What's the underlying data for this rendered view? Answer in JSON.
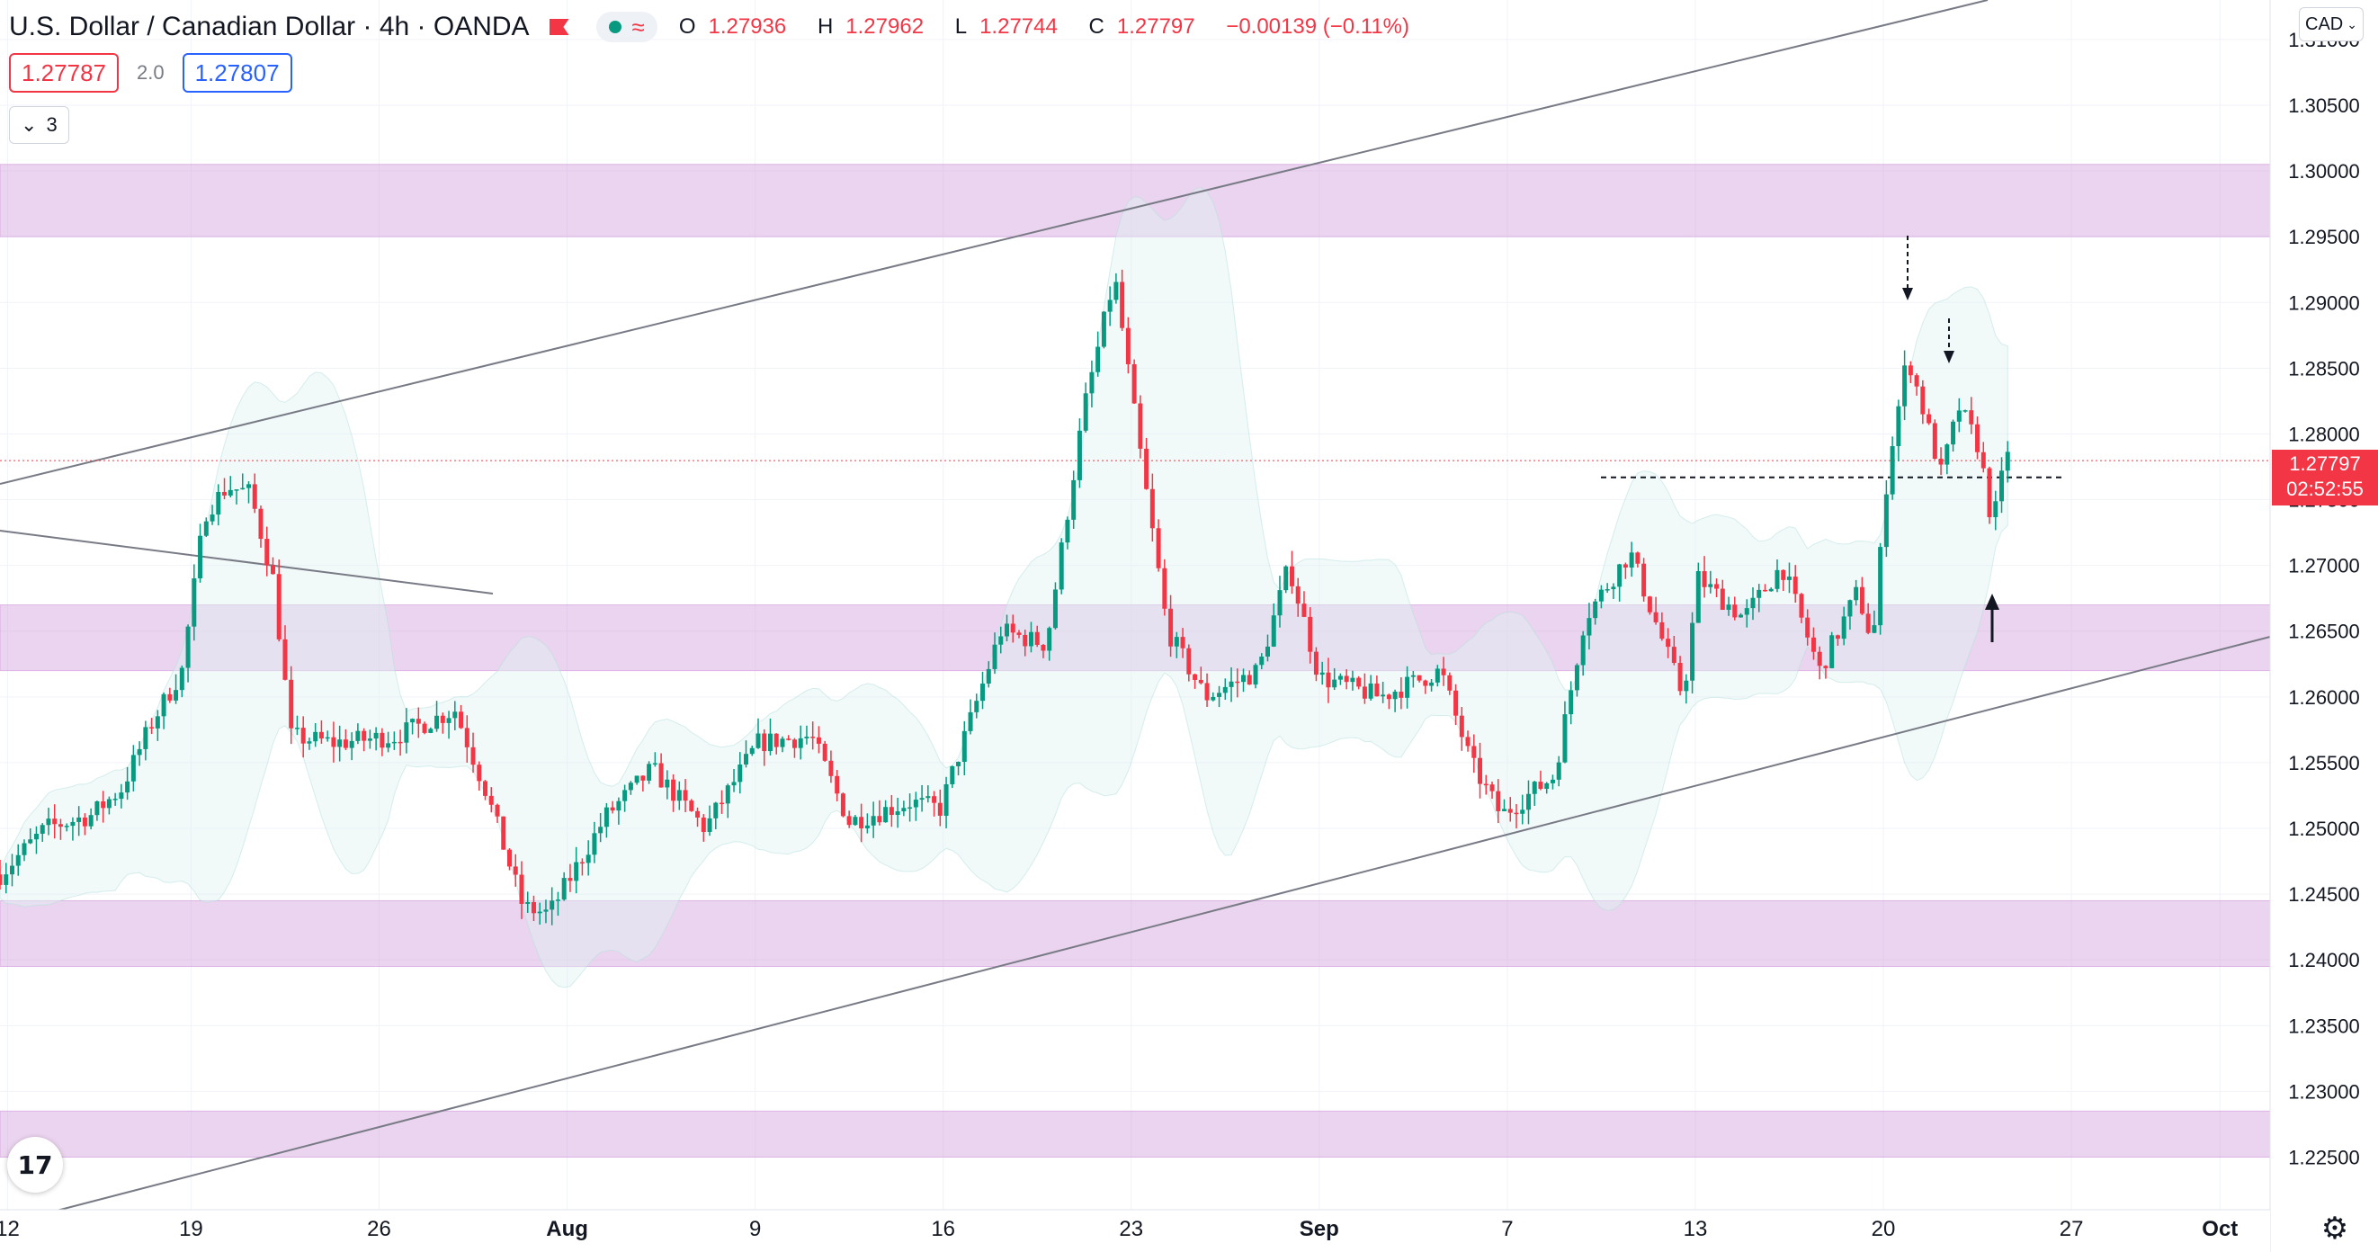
{
  "header": {
    "title": "U.S. Dollar / Canadian Dollar · 4h · OANDA",
    "ohlc": {
      "o": "1.27936",
      "h": "1.27962",
      "l": "1.27744",
      "c": "1.27797",
      "change": "−0.00139 (−0.11%)"
    }
  },
  "trade": {
    "sell": "1.27787",
    "spread": "2.0",
    "buy": "1.27807"
  },
  "indicators": {
    "count": "3"
  },
  "axis": {
    "currency": "CAD",
    "y_labels": [
      "1.31000",
      "1.30500",
      "1.30000",
      "1.29500",
      "1.29000",
      "1.28500",
      "1.28000",
      "1.27500",
      "1.27000",
      "1.26500",
      "1.26000",
      "1.25500",
      "1.25000",
      "1.24500",
      "1.24000",
      "1.23500",
      "1.23000",
      "1.22500"
    ],
    "x_labels": [
      "12",
      "19",
      "26",
      "Aug",
      "9",
      "16",
      "23",
      "Sep",
      "7",
      "13",
      "20",
      "27",
      "Oct"
    ]
  },
  "last_price": {
    "value": "1.27797",
    "countdown": "02:52:55"
  },
  "colors": {
    "up": "#089981",
    "down": "#f23645",
    "zone": "#ce93d8",
    "band": "#e0f2f1"
  },
  "zones": [
    {
      "from": 1.295,
      "to": 1.3005
    },
    {
      "from": 1.262,
      "to": 1.267
    },
    {
      "from": 1.2395,
      "to": 1.2445
    },
    {
      "from": 1.225,
      "to": 1.2285
    }
  ],
  "key_levels": [
    {
      "price": 1.2767,
      "style": "dashed"
    }
  ],
  "chart_data": {
    "type": "candlestick",
    "symbol": "USDCAD",
    "timeframe": "4h",
    "ylim": [
      1.221,
      1.313
    ],
    "price_path": [
      {
        "x": 0,
        "p": 1.2465
      },
      {
        "x": 30,
        "p": 1.25
      },
      {
        "x": 60,
        "p": 1.251
      },
      {
        "x": 80,
        "p": 1.253
      },
      {
        "x": 100,
        "p": 1.258
      },
      {
        "x": 120,
        "p": 1.262
      },
      {
        "x": 135,
        "p": 1.274
      },
      {
        "x": 150,
        "p": 1.276
      },
      {
        "x": 165,
        "p": 1.2755
      },
      {
        "x": 180,
        "p": 1.269
      },
      {
        "x": 192,
        "p": 1.257
      },
      {
        "x": 220,
        "p": 1.2565
      },
      {
        "x": 260,
        "p": 1.257
      },
      {
        "x": 300,
        "p": 1.259
      },
      {
        "x": 320,
        "p": 1.253
      },
      {
        "x": 345,
        "p": 1.244
      },
      {
        "x": 362,
        "p": 1.2435
      },
      {
        "x": 400,
        "p": 1.251
      },
      {
        "x": 430,
        "p": 1.2545
      },
      {
        "x": 465,
        "p": 1.25
      },
      {
        "x": 500,
        "p": 1.2565
      },
      {
        "x": 535,
        "p": 1.257
      },
      {
        "x": 560,
        "p": 1.2505
      },
      {
        "x": 600,
        "p": 1.252
      },
      {
        "x": 620,
        "p": 1.2515
      },
      {
        "x": 660,
        "p": 1.265
      },
      {
        "x": 690,
        "p": 1.264
      },
      {
        "x": 715,
        "p": 1.282
      },
      {
        "x": 735,
        "p": 1.292
      },
      {
        "x": 750,
        "p": 1.28
      },
      {
        "x": 770,
        "p": 1.265
      },
      {
        "x": 795,
        "p": 1.26
      },
      {
        "x": 830,
        "p": 1.262
      },
      {
        "x": 850,
        "p": 1.27
      },
      {
        "x": 870,
        "p": 1.2615
      },
      {
        "x": 910,
        "p": 1.26
      },
      {
        "x": 950,
        "p": 1.262
      },
      {
        "x": 970,
        "p": 1.255
      },
      {
        "x": 990,
        "p": 1.251
      },
      {
        "x": 1025,
        "p": 1.254
      },
      {
        "x": 1045,
        "p": 1.266
      },
      {
        "x": 1075,
        "p": 1.271
      },
      {
        "x": 1110,
        "p": 1.26
      },
      {
        "x": 1120,
        "p": 1.269
      },
      {
        "x": 1150,
        "p": 1.266
      },
      {
        "x": 1175,
        "p": 1.27
      },
      {
        "x": 1200,
        "p": 1.262
      },
      {
        "x": 1225,
        "p": 1.268
      },
      {
        "x": 1235,
        "p": 1.264
      },
      {
        "x": 1245,
        "p": 1.2775
      },
      {
        "x": 1258,
        "p": 1.286
      },
      {
        "x": 1280,
        "p": 1.277
      },
      {
        "x": 1292,
        "p": 1.282
      },
      {
        "x": 1305,
        "p": 1.279
      },
      {
        "x": 1314,
        "p": 1.273
      },
      {
        "x": 1325,
        "p": 1.2795
      }
    ]
  }
}
